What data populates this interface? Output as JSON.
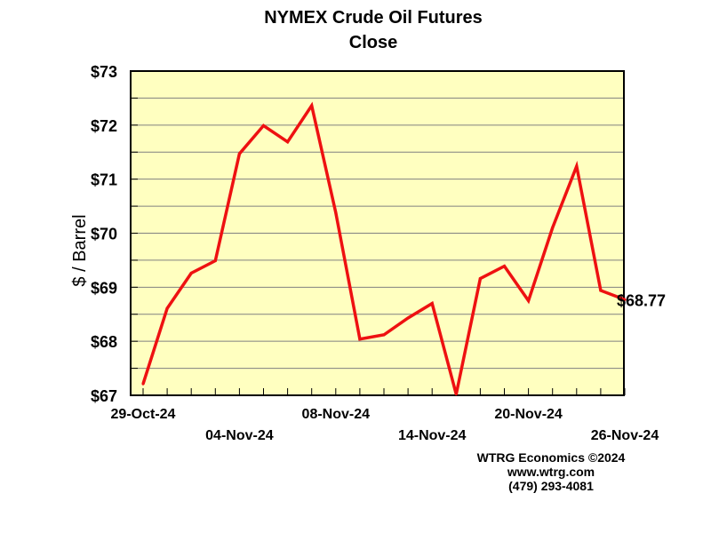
{
  "chart_data": {
    "type": "line",
    "title": "NYMEX Crude Oil Futures",
    "subtitle": "Close",
    "ylabel": "$ / Barrel",
    "xlabel": "",
    "ylim": [
      67,
      73
    ],
    "yticks": [
      67,
      68,
      69,
      70,
      71,
      72,
      73
    ],
    "ytick_labels": [
      "$67",
      "$68",
      "$69",
      "$70",
      "$71",
      "$72",
      "$73"
    ],
    "x": [
      "29-Oct-24",
      "30-Oct-24",
      "31-Oct-24",
      "01-Nov-24",
      "04-Nov-24",
      "05-Nov-24",
      "06-Nov-24",
      "07-Nov-24",
      "08-Nov-24",
      "11-Nov-24",
      "12-Nov-24",
      "13-Nov-24",
      "14-Nov-24",
      "15-Nov-24",
      "18-Nov-24",
      "19-Nov-24",
      "20-Nov-24",
      "21-Nov-24",
      "22-Nov-24",
      "25-Nov-24",
      "26-Nov-24"
    ],
    "xtick_labels": [
      {
        "index": 0,
        "label": "29-Oct-24",
        "row": 1
      },
      {
        "index": 4,
        "label": "04-Nov-24",
        "row": 2
      },
      {
        "index": 8,
        "label": "08-Nov-24",
        "row": 1
      },
      {
        "index": 12,
        "label": "14-Nov-24",
        "row": 2
      },
      {
        "index": 16,
        "label": "20-Nov-24",
        "row": 1
      },
      {
        "index": 20,
        "label": "26-Nov-24",
        "row": 2
      }
    ],
    "series": [
      {
        "values": [
          67.21,
          68.61,
          69.26,
          69.49,
          71.47,
          71.99,
          71.69,
          72.36,
          70.38,
          68.04,
          68.12,
          68.43,
          68.7,
          67.02,
          69.16,
          69.39,
          68.75,
          70.1,
          71.24,
          68.94,
          68.77
        ]
      }
    ],
    "last_value_label": "$68.77",
    "grid": true,
    "colors": {
      "plot_background": "#ffffc0",
      "line": "#ee1111",
      "grid": "#808080"
    }
  },
  "credits": {
    "line1": "WTRG Economics ©2024",
    "line2": "www.wtrg.com",
    "line3": "(479) 293-4081"
  }
}
